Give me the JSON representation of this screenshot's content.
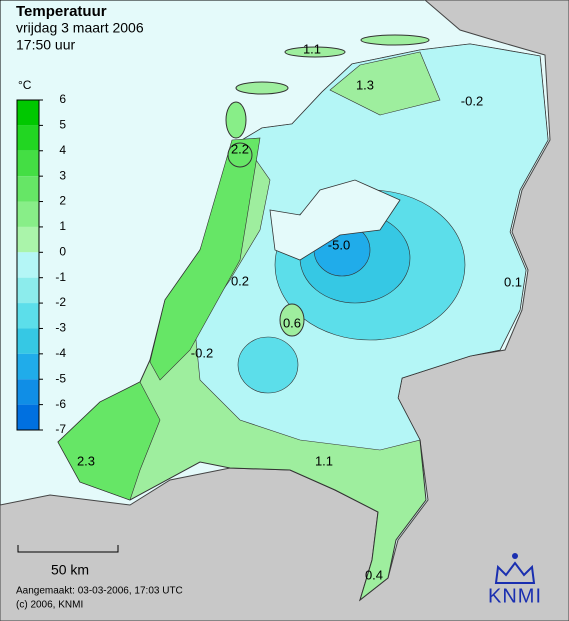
{
  "header": {
    "title": "Temperatuur",
    "date": "vrijdag 3 maart 2006",
    "time": "17:50 uur"
  },
  "legend": {
    "unit": "°C",
    "ticks": [
      6,
      5,
      4,
      3,
      2,
      1,
      0,
      -1,
      -2,
      -3,
      -4,
      -5,
      -6,
      -7
    ],
    "colors": [
      "#00c800",
      "#22d622",
      "#44de44",
      "#66e666",
      "#88ee88",
      "#aaf4aa",
      "#b4f6f6",
      "#8cecec",
      "#5cdeea",
      "#36c8e4",
      "#20acea",
      "#108ee6",
      "#0070e0"
    ]
  },
  "map_labels": [
    "1.1",
    "1.3",
    "-0.2",
    "2.2",
    "-5.0",
    "0.2",
    "0.1",
    "0.6",
    "-0.2",
    "2.3",
    "1.1",
    "0.4"
  ],
  "scale_bar": "50 km",
  "footer": {
    "created": "Aangemaakt: 03-03-2006, 17:03 UTC",
    "copyright": "(c) 2006, KNMI"
  },
  "logo": "KNMI"
}
